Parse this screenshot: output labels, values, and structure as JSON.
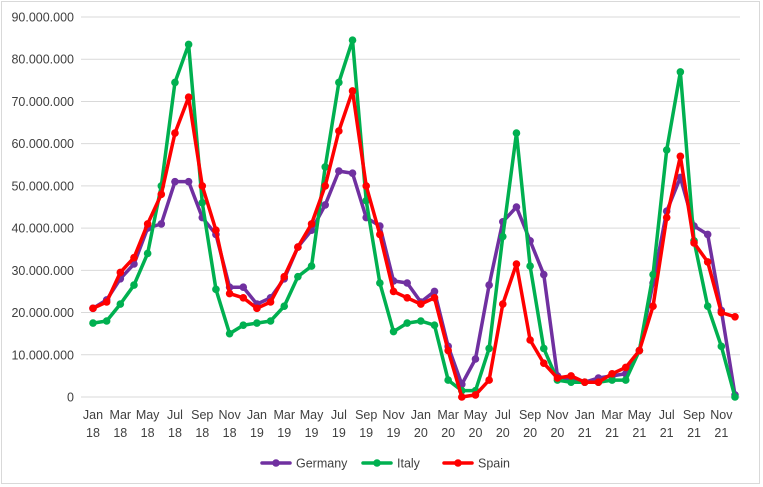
{
  "chart_data": {
    "type": "line",
    "title": "",
    "xlabel": "",
    "ylabel": "",
    "ylim": [
      0,
      90000000
    ],
    "y_ticks": [
      0,
      10000000,
      20000000,
      30000000,
      40000000,
      50000000,
      60000000,
      70000000,
      80000000,
      90000000
    ],
    "y_tick_labels": [
      "0",
      "10.000.000",
      "20.000.000",
      "30.000.000",
      "40.000.000",
      "50.000.000",
      "60.000.000",
      "70.000.000",
      "80.000.000",
      "90.000.000"
    ],
    "grid": "horizontal",
    "legend_position": "bottom",
    "categories": [
      "Jan 18",
      "Feb 18",
      "Mar 18",
      "Apr 18",
      "May 18",
      "Jun 18",
      "Jul 18",
      "Aug 18",
      "Sep 18",
      "Oct 18",
      "Nov 18",
      "Dec 18",
      "Jan 19",
      "Feb 19",
      "Mar 19",
      "Apr 19",
      "May 19",
      "Jun 19",
      "Jul 19",
      "Aug 19",
      "Sep 19",
      "Oct 19",
      "Nov 19",
      "Dec 19",
      "Jan 20",
      "Feb 20",
      "Mar 20",
      "Apr 20",
      "May 20",
      "Jun 20",
      "Jul 20",
      "Aug 20",
      "Sep 20",
      "Oct 20",
      "Nov 20",
      "Dec 20",
      "Jan 21",
      "Feb 21",
      "Mar 21",
      "Apr 21",
      "May 21",
      "Jun 21",
      "Jul 21",
      "Aug 21",
      "Sep 21",
      "Oct 21",
      "Nov 21",
      "Dec 21"
    ],
    "x_tick_labels": [
      {
        "index": 0,
        "month": "Jan",
        "year": "18"
      },
      {
        "index": 2,
        "month": "Mar",
        "year": "18"
      },
      {
        "index": 4,
        "month": "May",
        "year": "18"
      },
      {
        "index": 6,
        "month": "Jul",
        "year": "18"
      },
      {
        "index": 8,
        "month": "Sep",
        "year": "18"
      },
      {
        "index": 10,
        "month": "Nov",
        "year": "18"
      },
      {
        "index": 12,
        "month": "Jan",
        "year": "19"
      },
      {
        "index": 14,
        "month": "Mar",
        "year": "19"
      },
      {
        "index": 16,
        "month": "May",
        "year": "19"
      },
      {
        "index": 18,
        "month": "Jul",
        "year": "19"
      },
      {
        "index": 20,
        "month": "Sep",
        "year": "19"
      },
      {
        "index": 22,
        "month": "Nov",
        "year": "19"
      },
      {
        "index": 24,
        "month": "Jan",
        "year": "20"
      },
      {
        "index": 26,
        "month": "Mar",
        "year": "20"
      },
      {
        "index": 28,
        "month": "May",
        "year": "20"
      },
      {
        "index": 30,
        "month": "Jul",
        "year": "20"
      },
      {
        "index": 32,
        "month": "Sep",
        "year": "20"
      },
      {
        "index": 34,
        "month": "Nov",
        "year": "20"
      },
      {
        "index": 36,
        "month": "Jan",
        "year": "21"
      },
      {
        "index": 38,
        "month": "Mar",
        "year": "21"
      },
      {
        "index": 40,
        "month": "May",
        "year": "21"
      },
      {
        "index": 42,
        "month": "Jul",
        "year": "21"
      },
      {
        "index": 44,
        "month": "Sep",
        "year": "21"
      },
      {
        "index": 46,
        "month": "Nov",
        "year": "21"
      }
    ],
    "series": [
      {
        "name": "Germany",
        "color": "#7030a0",
        "values": [
          21000000,
          23000000,
          28000000,
          31500000,
          40000000,
          41000000,
          51000000,
          51000000,
          42500000,
          38500000,
          26000000,
          26000000,
          22000000,
          23500000,
          28000000,
          35500000,
          39500000,
          45500000,
          53500000,
          53000000,
          42500000,
          40500000,
          27500000,
          27000000,
          22500000,
          25000000,
          12000000,
          3000000,
          9000000,
          26500000,
          41500000,
          45000000,
          37000000,
          29000000,
          5000000,
          4000000,
          3500000,
          4500000,
          5000000,
          5500000,
          11000000,
          27000000,
          44000000,
          52000000,
          40500000,
          38500000,
          20500000,
          500000
        ]
      },
      {
        "name": "Italy",
        "color": "#00b050",
        "values": [
          17500000,
          18000000,
          22000000,
          26500000,
          34000000,
          50000000,
          74500000,
          83500000,
          46000000,
          25500000,
          15000000,
          17000000,
          17500000,
          18000000,
          21500000,
          28500000,
          31000000,
          54500000,
          74500000,
          84500000,
          46500000,
          27000000,
          15500000,
          17500000,
          18000000,
          17000000,
          4000000,
          1500000,
          1500000,
          11500000,
          38000000,
          62500000,
          31000000,
          11500000,
          4000000,
          3500000,
          3500000,
          3500000,
          4000000,
          4000000,
          11000000,
          29000000,
          58500000,
          77000000,
          37000000,
          21500000,
          12000000,
          0
        ]
      },
      {
        "name": "Spain",
        "color": "#ff0000",
        "values": [
          21000000,
          22500000,
          29500000,
          33000000,
          41000000,
          48000000,
          62500000,
          71000000,
          50000000,
          39500000,
          24500000,
          23500000,
          21000000,
          22500000,
          28500000,
          35500000,
          41000000,
          50000000,
          63000000,
          72500000,
          50000000,
          38500000,
          25000000,
          23500000,
          22000000,
          23500000,
          11000000,
          0,
          500000,
          4000000,
          22000000,
          31500000,
          13500000,
          8000000,
          4500000,
          5000000,
          3500000,
          3500000,
          5500000,
          7000000,
          11000000,
          21500000,
          42500000,
          57000000,
          36500000,
          32000000,
          20000000,
          19000000
        ]
      }
    ]
  }
}
